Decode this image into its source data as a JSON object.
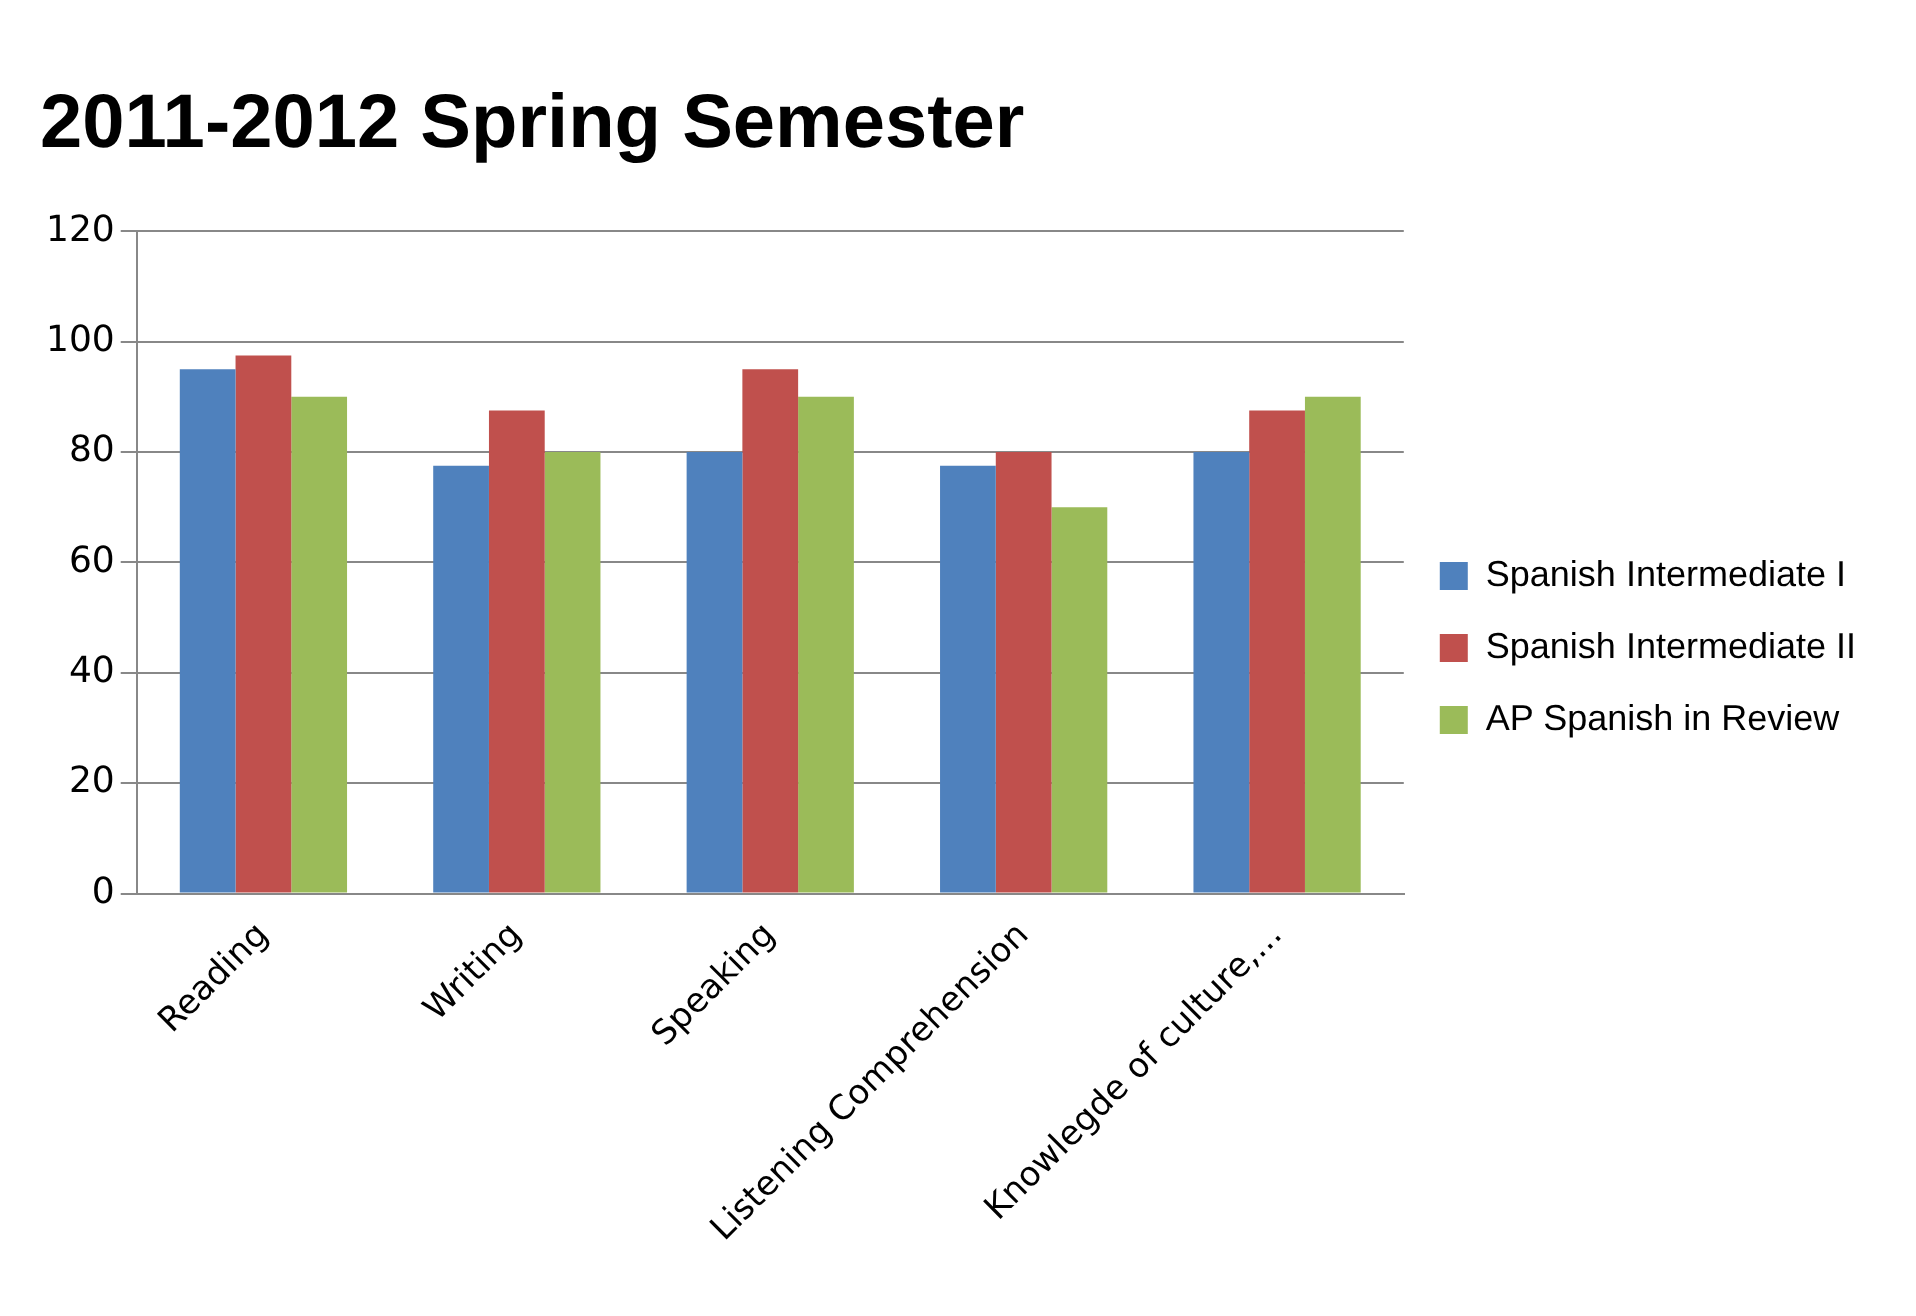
{
  "chart_data": {
    "type": "bar",
    "title": "2011-2012 Spring Semester",
    "categories": [
      "Reading",
      "Writing",
      "Speaking",
      "Listening Comprehension",
      "Knowlegde of culture,..."
    ],
    "series": [
      {
        "name": "Spanish Intermediate I",
        "color": "#4f81bd",
        "values": [
          95,
          77.5,
          80,
          77.5,
          80
        ]
      },
      {
        "name": "Spanish Intermediate II",
        "color": "#c0504d",
        "values": [
          97.5,
          87.5,
          95,
          80,
          87.5
        ]
      },
      {
        "name": "AP Spanish in Review",
        "color": "#9bbb59",
        "values": [
          90,
          80,
          90,
          70,
          90
        ]
      }
    ],
    "ylim": [
      0,
      120
    ],
    "yticks": [
      0,
      20,
      40,
      60,
      80,
      100,
      120
    ],
    "grid": "y",
    "legend": "right"
  }
}
